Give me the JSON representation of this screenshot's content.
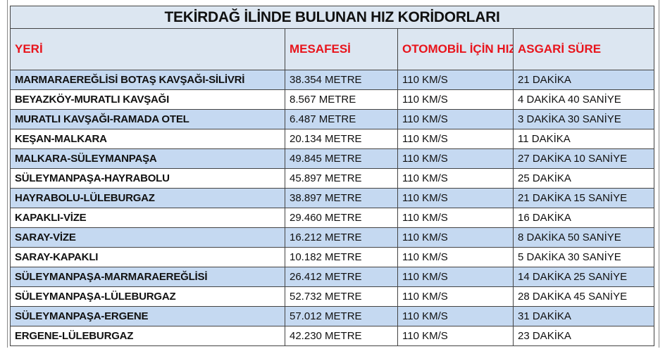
{
  "title": "TEKİRDAĞ İLİNDE BULUNAN HIZ KORİDORLARI",
  "headers": [
    "YERİ",
    "MESAFESİ",
    "OTOMOBİL İÇİN HIZ SINIRI",
    "ASGARİ SÜRE"
  ],
  "header_color": "#e8141c",
  "rows": [
    [
      "MARMARAEREĞLİSİ BOTAŞ KAVŞAĞI-SİLİVRİ",
      "38.354 METRE",
      "110 KM/S",
      "21 DAKİKA"
    ],
    [
      "BEYAZKÖY-MURATLI KAVŞAĞI",
      "8.567 METRE",
      "110 KM/S",
      "4 DAKİKA 40 SANİYE"
    ],
    [
      "MURATLI KAVŞAĞI-RAMADA OTEL",
      "6.487 METRE",
      "110 KM/S",
      "3 DAKİKA 30 SANİYE"
    ],
    [
      "KEŞAN-MALKARA",
      "20.134 METRE",
      "110 KM/S",
      "11 DAKİKA"
    ],
    [
      "MALKARA-SÜLEYMANPAŞA",
      "49.845 METRE",
      "110 KM/S",
      "27 DAKİKA 10 SANİYE"
    ],
    [
      "SÜLEYMANPAŞA-HAYRABOLU",
      "45.897 METRE",
      "110 KM/S",
      "25 DAKİKA"
    ],
    [
      "HAYRABOLU-LÜLEBURGAZ",
      "38.897 METRE",
      "110 KM/S",
      "21 DAKİKA 15 SANİYE"
    ],
    [
      "KAPAKLI-VİZE",
      "29.460 METRE",
      "110 KM/S",
      "16 DAKİKA"
    ],
    [
      "SARAY-VİZE",
      "16.212 METRE",
      "110 KM/S",
      "8 DAKİKA 50 SANİYE"
    ],
    [
      "SARAY-KAPAKLI",
      "10.182 METRE",
      "110 KM/S",
      "5 DAKİKA 30 SANİYE"
    ],
    [
      "SÜLEYMANPAŞA-MARMARAEREĞLİSİ",
      "26.412 METRE",
      "110 KM/S",
      "14 DAKİKA 25 SANİYE"
    ],
    [
      "SÜLEYMANPAŞA-LÜLEBURGAZ",
      "52.732 METRE",
      "110 KM/S",
      "28 DAKİKA 45 SANİYE"
    ],
    [
      "SÜLEYMANPAŞA-ERGENE",
      "57.012 METRE",
      "110 KM/S",
      "31 DAKİKA"
    ],
    [
      "ERGENE-LÜLEBURGAZ",
      "42.230 METRE",
      "110 KM/S",
      "23 DAKİKA"
    ]
  ]
}
